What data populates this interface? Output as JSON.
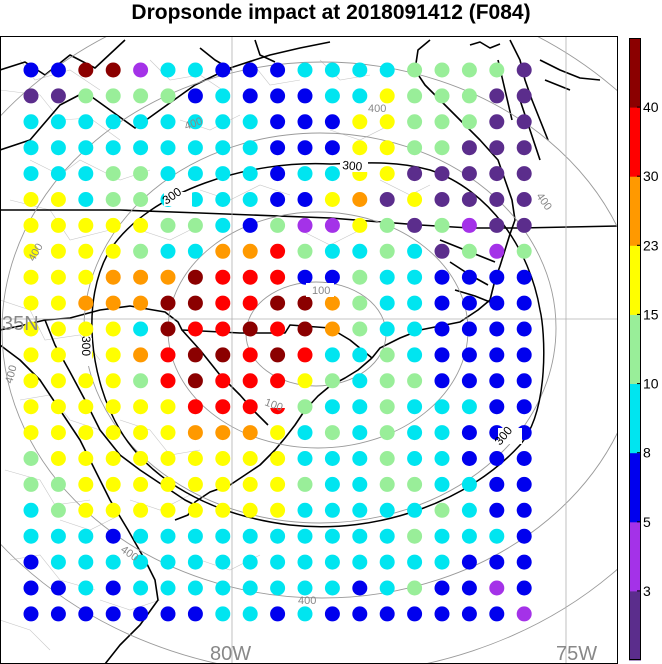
{
  "title": "Dropsonde impact at 2018091412 (F084)",
  "map": {
    "lat_labels": [
      "35N"
    ],
    "lon_labels": [
      "80W",
      "75W"
    ],
    "range_ring_labels": [
      "100",
      "100",
      "300",
      "300",
      "300",
      "300",
      "400",
      "400",
      "400",
      "400",
      "400",
      "400",
      "400"
    ]
  },
  "colorbar": {
    "tick_labels": [
      "3",
      "5",
      "8",
      "10",
      "15",
      "23",
      "30",
      "40"
    ],
    "colors": [
      "#5b2d8c",
      "#a432e8",
      "#0000ee",
      "#00e5f0",
      "#99ee99",
      "#ffff00",
      "#ff9900",
      "#ff0000",
      "#8b0000"
    ]
  },
  "grid": {
    "color_rows": [
      "2288133222333344440",
      "0044442322233544400",
      "3333333332225544400",
      "3333333332225544000",
      "3334433332335500000",
      "5534433332256050000",
      "5555544324115404100",
      "5555433667433430414",
      "5556668777224332222",
      "5566688778864332222",
      "5555387787864332222",
      "5555678878733432222",
      "5555478777543442222",
      "5555557777433433322",
      "5555556665343433222",
      "4555555555333433222",
      "4455555555433443322",
      "3455555555333334322",
      "3332333333333343332",
      "2333333333333333222",
      "2232333333332342212",
      "2222222332322222221"
    ]
  }
}
